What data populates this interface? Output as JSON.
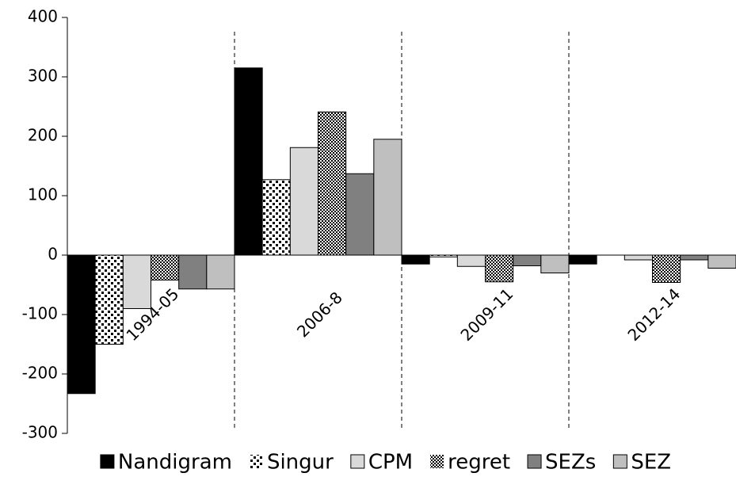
{
  "chart_data": {
    "type": "bar",
    "categories": [
      "1994-05",
      "2006-8",
      "2009-11",
      "2012-14"
    ],
    "series": [
      {
        "name": "Nandigram",
        "color": "#000000",
        "values": [
          -233,
          315,
          -15,
          -15
        ]
      },
      {
        "name": "Singur",
        "color": "#ffffff",
        "pattern": "dots",
        "values": [
          -150,
          127,
          -3,
          0
        ]
      },
      {
        "name": "CPM",
        "color": "#d9d9d9",
        "values": [
          -90,
          181,
          -19,
          -8
        ]
      },
      {
        "name": "regret",
        "color": "#ffffff",
        "pattern": "checker",
        "values": [
          -42,
          241,
          -45,
          -46
        ]
      },
      {
        "name": "SEZs",
        "color": "#808080",
        "values": [
          -57,
          137,
          -18,
          -8
        ]
      },
      {
        "name": "SEZ",
        "color": "#bfbfbf",
        "values": [
          -57,
          195,
          -30,
          -22
        ]
      }
    ],
    "ylim": [
      -300,
      400
    ],
    "yticks": [
      -300,
      -200,
      -100,
      0,
      100,
      200,
      300,
      400
    ],
    "grid": false,
    "legend": "bottom"
  }
}
